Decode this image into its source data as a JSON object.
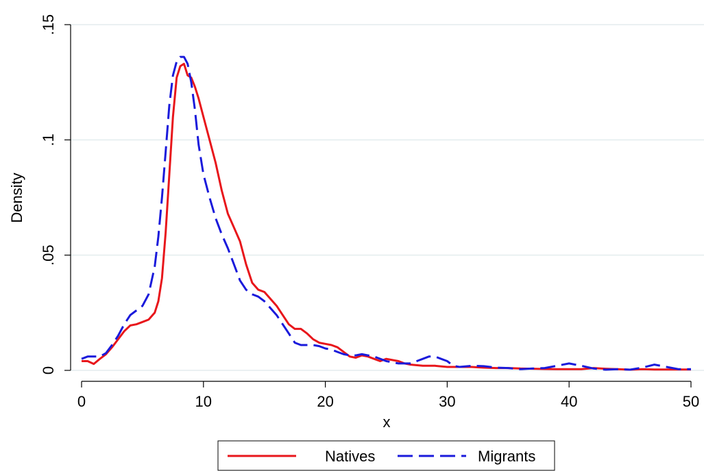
{
  "chart_data": {
    "type": "line",
    "xlabel": "x",
    "ylabel": "Density",
    "xlim": [
      0,
      50
    ],
    "ylim": [
      0,
      0.15
    ],
    "xticks": [
      0,
      10,
      20,
      30,
      40,
      50
    ],
    "xtick_labels": [
      "0",
      "10",
      "20",
      "30",
      "40",
      "50"
    ],
    "yticks": [
      0,
      0.05,
      0.1,
      0.15
    ],
    "ytick_labels": [
      "0",
      ".05",
      ".1",
      ".15"
    ],
    "grid": "horizontal",
    "legend": "bottom",
    "series": [
      {
        "name": "Natives",
        "color": "#e8161b",
        "dash": "solid",
        "x": [
          0,
          0.5,
          1,
          1.5,
          2,
          2.5,
          3,
          3.5,
          4,
          4.5,
          5,
          5.5,
          6,
          6.3,
          6.6,
          6.9,
          7.2,
          7.5,
          7.8,
          8.1,
          8.4,
          8.7,
          9,
          9.3,
          9.6,
          10,
          10.5,
          11,
          11.5,
          12,
          12.5,
          13,
          13.5,
          14,
          14.5,
          15,
          15.5,
          16,
          16.5,
          17,
          17.5,
          18,
          18.5,
          19,
          19.5,
          20,
          20.5,
          21,
          21.5,
          22,
          22.5,
          23,
          23.5,
          24,
          24.5,
          25,
          25.5,
          26,
          26.5,
          27,
          28,
          29,
          30,
          31,
          32,
          33,
          34,
          35,
          36,
          37,
          38,
          39,
          40,
          41,
          42,
          43,
          44,
          45,
          46,
          47,
          48,
          49,
          50
        ],
        "values": [
          0.004,
          0.004,
          0.0028,
          0.005,
          0.007,
          0.01,
          0.0135,
          0.017,
          0.0195,
          0.02,
          0.021,
          0.022,
          0.025,
          0.03,
          0.04,
          0.06,
          0.085,
          0.11,
          0.127,
          0.132,
          0.133,
          0.128,
          0.127,
          0.123,
          0.118,
          0.11,
          0.1,
          0.09,
          0.078,
          0.068,
          0.062,
          0.056,
          0.046,
          0.038,
          0.035,
          0.034,
          0.031,
          0.028,
          0.024,
          0.02,
          0.018,
          0.018,
          0.016,
          0.0135,
          0.012,
          0.0115,
          0.011,
          0.01,
          0.008,
          0.006,
          0.0055,
          0.0065,
          0.006,
          0.005,
          0.004,
          0.005,
          0.0045,
          0.004,
          0.003,
          0.0025,
          0.002,
          0.002,
          0.0015,
          0.0015,
          0.0015,
          0.0012,
          0.001,
          0.001,
          0.0008,
          0.0007,
          0.0006,
          0.0005,
          0.0005,
          0.0005,
          0.001,
          0.0007,
          0.0005,
          0.0003,
          0.0005,
          0.0004,
          0.0004,
          0.0004,
          0.0004
        ]
      },
      {
        "name": "Migrants",
        "color": "#1a1adb",
        "dash": "dashed",
        "x": [
          0,
          0.5,
          1,
          1.5,
          2,
          2.5,
          3,
          3.5,
          4,
          4.5,
          5,
          5.5,
          6,
          6.3,
          6.6,
          6.9,
          7.2,
          7.5,
          7.8,
          8.1,
          8.4,
          8.7,
          9,
          9.3,
          9.6,
          10,
          10.5,
          11,
          11.5,
          12,
          12.5,
          13,
          13.5,
          14,
          14.5,
          15,
          15.5,
          16,
          16.5,
          17,
          17.5,
          18,
          18.5,
          19,
          19.5,
          20,
          20.5,
          21,
          21.5,
          22,
          22.5,
          23,
          23.5,
          24,
          24.5,
          25,
          25.5,
          26,
          26.5,
          27,
          27.5,
          28,
          28.5,
          29,
          29.5,
          30,
          30.5,
          31,
          32,
          33,
          34,
          35,
          36,
          37,
          38,
          39,
          40,
          41,
          42,
          43,
          44,
          45,
          46,
          47,
          48,
          49,
          50
        ],
        "values": [
          0.005,
          0.006,
          0.006,
          0.006,
          0.0075,
          0.011,
          0.015,
          0.02,
          0.024,
          0.026,
          0.028,
          0.033,
          0.045,
          0.058,
          0.075,
          0.095,
          0.115,
          0.128,
          0.134,
          0.136,
          0.136,
          0.133,
          0.125,
          0.113,
          0.098,
          0.085,
          0.075,
          0.066,
          0.059,
          0.053,
          0.046,
          0.039,
          0.035,
          0.033,
          0.032,
          0.03,
          0.027,
          0.024,
          0.02,
          0.016,
          0.012,
          0.011,
          0.011,
          0.011,
          0.0105,
          0.0095,
          0.009,
          0.008,
          0.007,
          0.0065,
          0.0065,
          0.007,
          0.0065,
          0.006,
          0.005,
          0.004,
          0.0035,
          0.003,
          0.003,
          0.003,
          0.004,
          0.005,
          0.006,
          0.006,
          0.005,
          0.004,
          0.002,
          0.0015,
          0.002,
          0.0018,
          0.0012,
          0.001,
          0.0005,
          0.0008,
          0.001,
          0.002,
          0.003,
          0.002,
          0.0008,
          0.0003,
          0.0005,
          0.0003,
          0.0012,
          0.0025,
          0.0015,
          0.0005,
          0.0005
        ]
      }
    ]
  }
}
